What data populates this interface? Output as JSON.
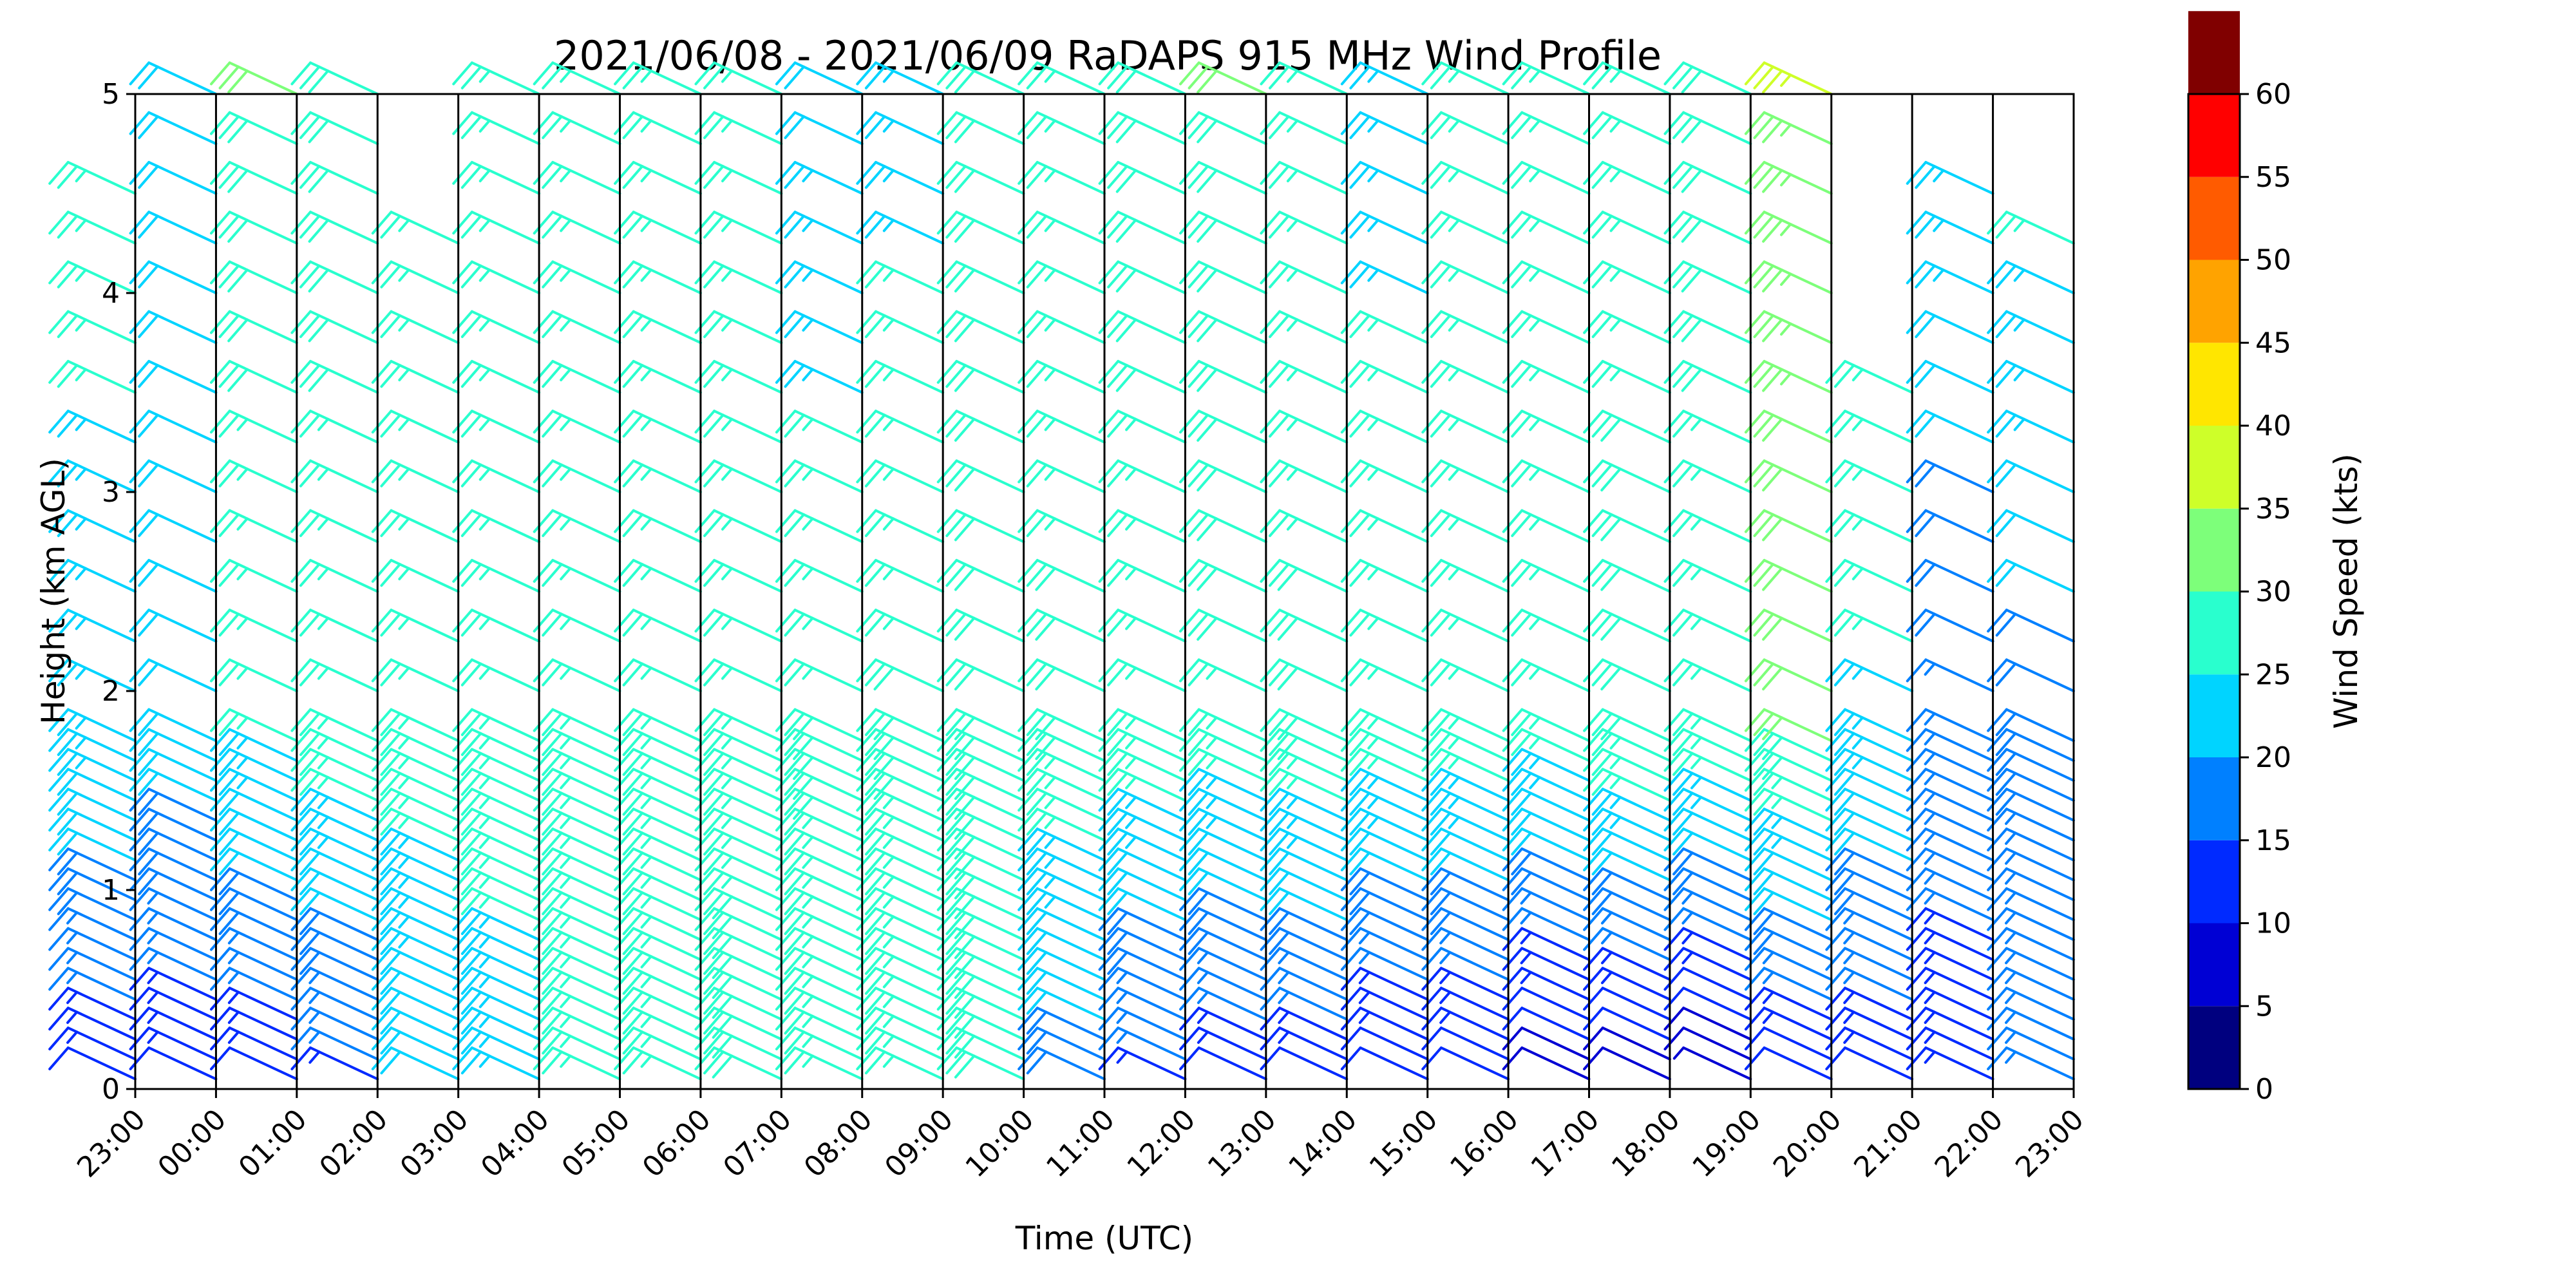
{
  "chart_data": {
    "type": "scatter",
    "subtype": "wind-barb-profile",
    "title": "2021/06/08 - 2021/06/09 RaDAPS 915 MHz Wind Profile",
    "xlabel": "Time (UTC)",
    "ylabel": "Height (km AGL)",
    "x_ticks": [
      "23:00",
      "00:00",
      "01:00",
      "02:00",
      "03:00",
      "04:00",
      "05:00",
      "06:00",
      "07:00",
      "08:00",
      "09:00",
      "10:00",
      "11:00",
      "12:00",
      "13:00",
      "14:00",
      "15:00",
      "16:00",
      "17:00",
      "18:00",
      "19:00",
      "20:00",
      "21:00",
      "22:00",
      "23:00"
    ],
    "y_ticks": [
      "0",
      "1",
      "2",
      "3",
      "4",
      "5"
    ],
    "ylim": [
      0,
      5
    ],
    "grid": "vertical lines at each hour",
    "colorbar": {
      "label": "Wind Speed (kts)",
      "ticks": [
        "0",
        "5",
        "10",
        "15",
        "20",
        "25",
        "30",
        "35",
        "40",
        "45",
        "50",
        "55",
        "60"
      ],
      "colors": [
        "#00007f",
        "#0000d4",
        "#002aff",
        "#0080ff",
        "#00d4ff",
        "#29ffce",
        "#7dff7a",
        "#ceff29",
        "#ffe600",
        "#ffa300",
        "#ff5b00",
        "#ff0000",
        "#800000"
      ]
    },
    "profile_heights_km": [
      0.05,
      0.15,
      0.25,
      0.35,
      0.45,
      0.55,
      0.65,
      0.75,
      0.85,
      0.95,
      1.05,
      1.15,
      1.25,
      1.35,
      1.45,
      1.55,
      1.65,
      1.75,
      2.0,
      2.25,
      2.5,
      2.75,
      3.0,
      3.25,
      3.5,
      3.75,
      4.0,
      4.25,
      4.5,
      4.75,
      5.0
    ],
    "series": [
      {
        "time": "23:00",
        "top_km": 4.6,
        "speed_low_kts": 12,
        "speed_mid_kts": 24,
        "speed_high_kts": 26
      },
      {
        "time": "00:00",
        "top_km": 5.0,
        "speed_low_kts": 12,
        "speed_mid_kts": 22,
        "speed_high_kts": 22
      },
      {
        "time": "01:00",
        "top_km": 5.0,
        "speed_low_kts": 12,
        "speed_mid_kts": 25,
        "speed_high_kts": 30
      },
      {
        "time": "02:00",
        "top_km": 5.0,
        "speed_low_kts": 14,
        "speed_mid_kts": 27,
        "speed_high_kts": 28
      },
      {
        "time": "03:00",
        "top_km": 4.4,
        "speed_low_kts": 20,
        "speed_mid_kts": 27,
        "speed_high_kts": 25
      },
      {
        "time": "04:00",
        "top_km": 5.0,
        "speed_low_kts": 24,
        "speed_mid_kts": 26,
        "speed_high_kts": 27
      },
      {
        "time": "05:00",
        "top_km": 5.0,
        "speed_low_kts": 26,
        "speed_mid_kts": 26,
        "speed_high_kts": 27
      },
      {
        "time": "06:00",
        "top_km": 5.0,
        "speed_low_kts": 26,
        "speed_mid_kts": 26,
        "speed_high_kts": 26
      },
      {
        "time": "07:00",
        "top_km": 5.0,
        "speed_low_kts": 28,
        "speed_mid_kts": 27,
        "speed_high_kts": 25
      },
      {
        "time": "08:00",
        "top_km": 5.0,
        "speed_low_kts": 26,
        "speed_mid_kts": 28,
        "speed_high_kts": 22
      },
      {
        "time": "09:00",
        "top_km": 5.0,
        "speed_low_kts": 25,
        "speed_mid_kts": 28,
        "speed_high_kts": 24
      },
      {
        "time": "10:00",
        "top_km": 5.0,
        "speed_low_kts": 28,
        "speed_mid_kts": 30,
        "speed_high_kts": 28
      },
      {
        "time": "11:00",
        "top_km": 5.0,
        "speed_low_kts": 18,
        "speed_mid_kts": 28,
        "speed_high_kts": 26
      },
      {
        "time": "12:00",
        "top_km": 5.0,
        "speed_low_kts": 14,
        "speed_mid_kts": 27,
        "speed_high_kts": 28
      },
      {
        "time": "13:00",
        "top_km": 5.0,
        "speed_low_kts": 12,
        "speed_mid_kts": 27,
        "speed_high_kts": 30
      },
      {
        "time": "14:00",
        "top_km": 5.0,
        "speed_low_kts": 12,
        "speed_mid_kts": 28,
        "speed_high_kts": 26
      },
      {
        "time": "15:00",
        "top_km": 5.0,
        "speed_low_kts": 10,
        "speed_mid_kts": 27,
        "speed_high_kts": 24
      },
      {
        "time": "16:00",
        "top_km": 5.0,
        "speed_low_kts": 10,
        "speed_mid_kts": 27,
        "speed_high_kts": 25
      },
      {
        "time": "17:00",
        "top_km": 5.0,
        "speed_low_kts": 8,
        "speed_mid_kts": 26,
        "speed_high_kts": 25
      },
      {
        "time": "18:00",
        "top_km": 5.0,
        "speed_low_kts": 8,
        "speed_mid_kts": 28,
        "speed_high_kts": 27
      },
      {
        "time": "19:00",
        "top_km": 5.0,
        "speed_low_kts": 6,
        "speed_mid_kts": 27,
        "speed_high_kts": 28
      },
      {
        "time": "20:00",
        "top_km": 5.0,
        "speed_low_kts": 10,
        "speed_mid_kts": 30,
        "speed_high_kts": 35
      },
      {
        "time": "21:00",
        "top_km": 3.7,
        "speed_low_kts": 12,
        "speed_mid_kts": 24,
        "speed_high_kts": 30
      },
      {
        "time": "22:00",
        "top_km": 4.5,
        "speed_low_kts": 14,
        "speed_mid_kts": 16,
        "speed_high_kts": 26
      },
      {
        "time": "23:00",
        "top_km": 4.4,
        "speed_low_kts": 16,
        "speed_mid_kts": 18,
        "speed_high_kts": 28
      }
    ]
  }
}
